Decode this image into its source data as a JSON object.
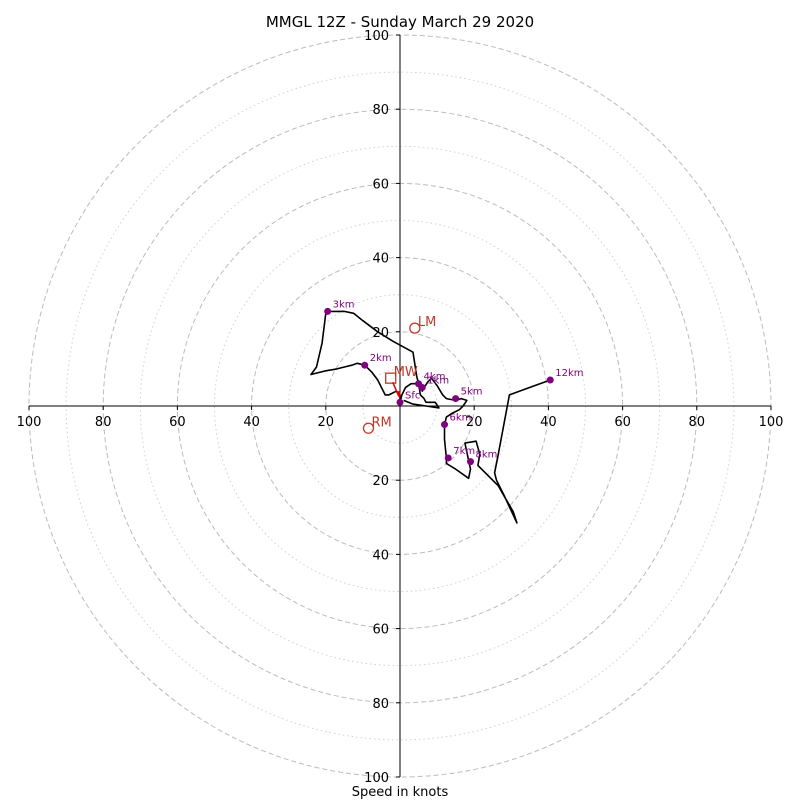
{
  "chart_data": {
    "type": "hodograph",
    "title": "MMGL 12Z - Sunday March 29 2020",
    "xlabel": "Speed in knots",
    "rings_major": [
      20,
      40,
      60,
      80,
      100
    ],
    "rings_minor": [
      10,
      30,
      50,
      70,
      90
    ],
    "axis_range": [
      -100,
      100
    ],
    "x_ticks": [
      "100",
      "80",
      "60",
      "40",
      "20",
      "20",
      "40",
      "60",
      "80",
      "100"
    ],
    "x_tick_values": [
      -100,
      -80,
      -60,
      -40,
      -20,
      20,
      40,
      60,
      80,
      100
    ],
    "y_ticks": [
      "100",
      "80",
      "60",
      "40",
      "20",
      "20",
      "40",
      "60",
      "80",
      "100"
    ],
    "y_tick_values": [
      100,
      80,
      60,
      40,
      20,
      -20,
      -40,
      -60,
      -80,
      -100
    ],
    "colors": {
      "trace": "#000000",
      "height_markers": "#800080",
      "storm_motion": "#c0392b",
      "grid": "#bbbbbb",
      "arrow": "#dd0000"
    },
    "trace": [
      [
        0,
        1
      ],
      [
        0,
        3
      ],
      [
        -1,
        4
      ],
      [
        -3,
        3
      ],
      [
        -4,
        3
      ],
      [
        -5,
        5
      ],
      [
        -6,
        7
      ],
      [
        -7.5,
        9
      ],
      [
        -9.5,
        11
      ],
      [
        -11.5,
        11.5
      ],
      [
        -13,
        11
      ],
      [
        -15,
        10.5
      ],
      [
        -17,
        10
      ],
      [
        -20,
        9.5
      ],
      [
        -22,
        9
      ],
      [
        -24,
        8.5
      ],
      [
        -22.5,
        10.5
      ],
      [
        -21,
        17
      ],
      [
        -20,
        25
      ],
      [
        -19.5,
        25.5
      ],
      [
        -17,
        25.5
      ],
      [
        -15,
        25.5
      ],
      [
        -12.5,
        25
      ],
      [
        -10,
        23
      ],
      [
        -6,
        20
      ],
      [
        -2,
        17.5
      ],
      [
        3.5,
        14.5
      ],
      [
        4.5,
        8
      ],
      [
        5,
        6
      ],
      [
        5.5,
        5.5
      ],
      [
        6,
        4
      ],
      [
        6.5,
        5
      ],
      [
        7.5,
        6.5
      ],
      [
        8.5,
        7.5
      ],
      [
        10,
        5.5
      ],
      [
        11.5,
        3
      ],
      [
        12.5,
        2
      ],
      [
        15,
        1.5
      ],
      [
        16.5,
        2
      ],
      [
        18,
        1.5
      ],
      [
        17,
        0
      ],
      [
        16,
        -1
      ],
      [
        14,
        -2
      ],
      [
        12.5,
        -3
      ],
      [
        12,
        -5
      ],
      [
        12,
        -9
      ],
      [
        12.5,
        -14
      ],
      [
        12.5,
        -15.5
      ],
      [
        15,
        -17
      ],
      [
        18.5,
        -19.5
      ],
      [
        19,
        -17
      ],
      [
        17.5,
        -10
      ],
      [
        20.5,
        -9.5
      ],
      [
        21.5,
        -13
      ],
      [
        21,
        -16
      ],
      [
        23,
        -18
      ],
      [
        26.5,
        -21.5
      ],
      [
        28.5,
        -25
      ],
      [
        30.5,
        -28.5
      ],
      [
        31.5,
        -31.5
      ],
      [
        28,
        -24
      ],
      [
        26,
        -20
      ],
      [
        25.5,
        -18
      ],
      [
        26.5,
        -13
      ],
      [
        29.5,
        3
      ],
      [
        35,
        5
      ],
      [
        40.5,
        7
      ]
    ],
    "trace_low": [
      [
        0,
        1
      ],
      [
        0.5,
        3
      ],
      [
        1.5,
        5
      ],
      [
        3,
        6
      ],
      [
        5,
        6
      ],
      [
        5.5,
        3
      ],
      [
        6.5,
        2
      ],
      [
        7,
        1
      ],
      [
        9.5,
        1
      ],
      [
        10.5,
        -0.5
      ],
      [
        7,
        0
      ],
      [
        3.5,
        0.5
      ],
      [
        1,
        1.5
      ]
    ],
    "heights": [
      {
        "label": "Sfc",
        "u": 0,
        "v": 1
      },
      {
        "label": "1km",
        "u": 6,
        "v": 5
      },
      {
        "label": "2km",
        "u": -9.5,
        "v": 11
      },
      {
        "label": "3km",
        "u": -19.5,
        "v": 25.5
      },
      {
        "label": "4km",
        "u": 5,
        "v": 6
      },
      {
        "label": "5km",
        "u": 15,
        "v": 2
      },
      {
        "label": "6km",
        "u": 12,
        "v": -5
      },
      {
        "label": "7km",
        "u": 13,
        "v": -14
      },
      {
        "label": "8km",
        "u": 19,
        "v": -15
      },
      {
        "label": "12km",
        "u": 40.5,
        "v": 7
      }
    ],
    "storm_motion": [
      {
        "label": "LM",
        "u": 4,
        "v": 21,
        "marker": "circle"
      },
      {
        "label": "RM",
        "u": -8.5,
        "v": -6,
        "marker": "circle"
      },
      {
        "label": "MW",
        "u": -2.5,
        "v": 7.5,
        "marker": "square"
      }
    ]
  }
}
